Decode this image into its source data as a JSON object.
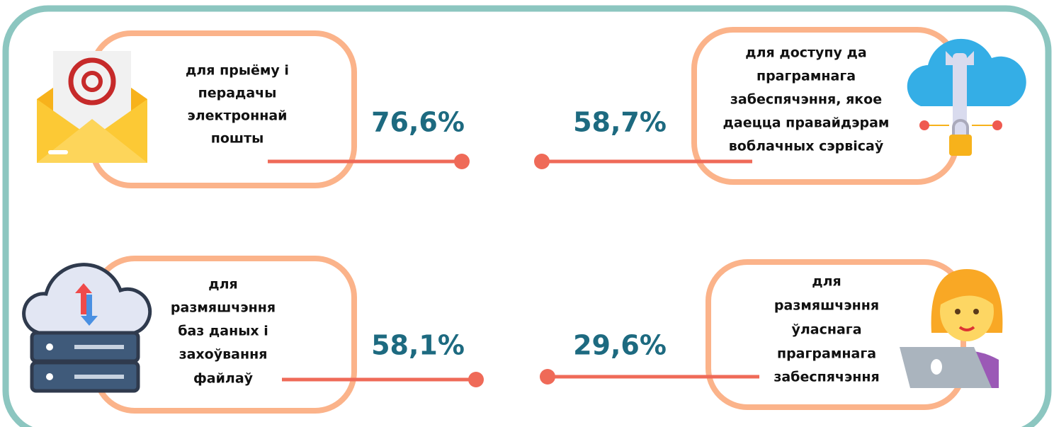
{
  "items": [
    {
      "label": [
        "для прыёму і",
        "перадачы",
        "электроннай",
        "пошты"
      ],
      "value": "76,6%"
    },
    {
      "label": [
        "для доступу да",
        "праграмнага",
        "забеспячэння, якое",
        "даецца правайдэрам",
        "воблачных сэрвісаў"
      ],
      "value": "58,7%"
    },
    {
      "label": [
        "для",
        "размяшчэння",
        "баз даных і",
        "захоўвання",
        "файлаў"
      ],
      "value": "58,1%"
    },
    {
      "label": [
        "для",
        "размяшчэння",
        "ўласнага",
        "праграмнага",
        "забеспячэння"
      ],
      "value": "29,6%"
    }
  ]
}
